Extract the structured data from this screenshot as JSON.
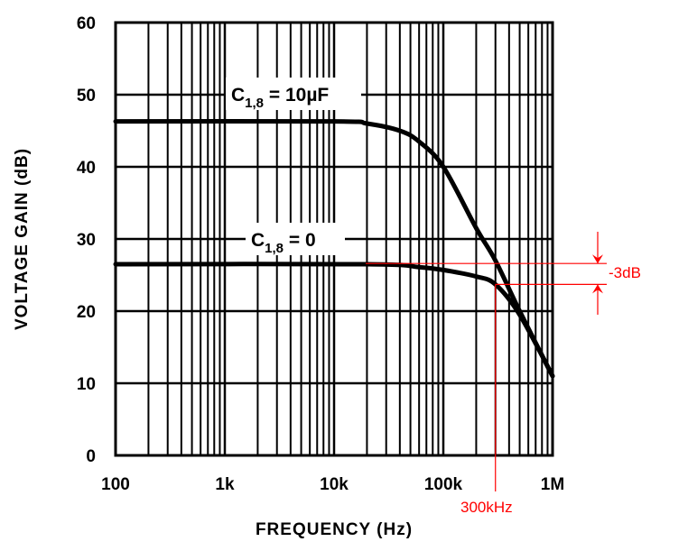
{
  "chart_data": {
    "type": "line",
    "xlabel": "FREQUENCY (Hz)",
    "ylabel": "VOLTAGE GAIN (dB)",
    "xscale": "log",
    "xlim": [
      100,
      1000000
    ],
    "ylim": [
      0,
      60
    ],
    "grid": true,
    "x_ticks": [
      100,
      1000,
      10000,
      100000,
      1000000
    ],
    "x_tick_labels": [
      "100",
      "1k",
      "10k",
      "100k",
      "1M"
    ],
    "y_ticks": [
      0,
      10,
      20,
      30,
      40,
      50,
      60
    ],
    "y_tick_labels": [
      "0",
      "10",
      "20",
      "30",
      "40",
      "50",
      "60"
    ],
    "series": [
      {
        "name": "C1,8 = 10µF",
        "label_main": "C",
        "label_sub": "1,8",
        "label_rest": " = 10µF",
        "x": [
          100,
          10000,
          20000,
          40000,
          60000,
          100000,
          200000,
          300000,
          500000,
          1000000
        ],
        "y": [
          46.3,
          46.3,
          46,
          45,
          43.5,
          40,
          31.5,
          27,
          20,
          11
        ]
      },
      {
        "name": "C1,8 = 0",
        "label_main": "C",
        "label_sub": "1,8",
        "label_rest": " = 0",
        "x": [
          100,
          20000,
          60000,
          100000,
          200000,
          300000,
          500000,
          1000000
        ],
        "y": [
          26.5,
          26.5,
          26.1,
          25.7,
          24.8,
          23.7,
          19.5,
          11
        ]
      }
    ],
    "annotations": {
      "color": "#ff0000",
      "minus3db_label": "-3dB",
      "freq_label": "300kHz",
      "upper_db": 26.6,
      "lower_db": 23.7,
      "freq": 300000
    }
  }
}
